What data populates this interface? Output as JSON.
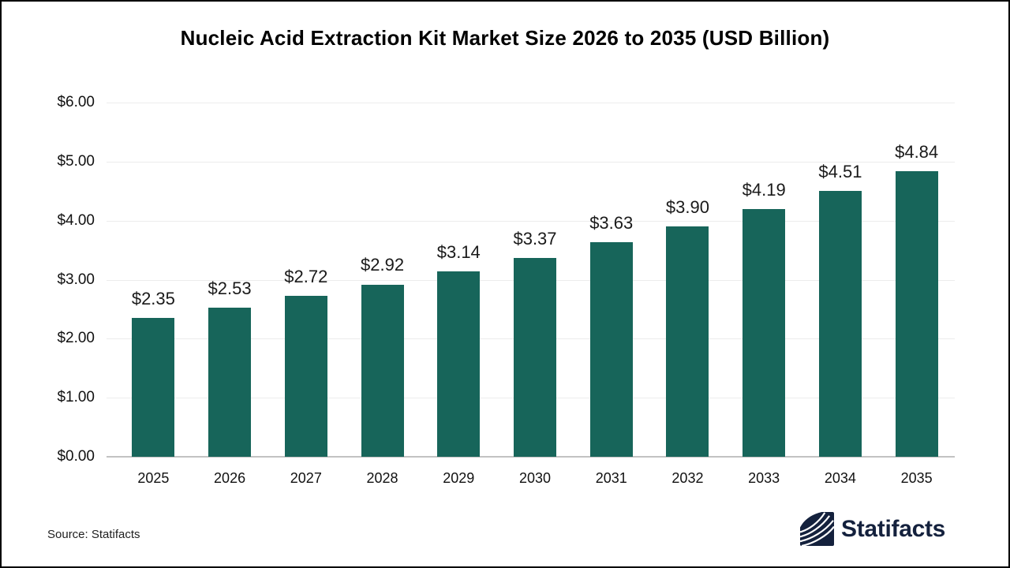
{
  "page": {
    "source_text": "Source: Statifacts",
    "brand_name": "Statifacts"
  },
  "colors": {
    "bar": "#17655a",
    "gridline": "#ececec",
    "axis_line": "#c2c2c2",
    "title_text": "#000000",
    "label_text": "#1a1a1a",
    "brand_navy": "#14213d"
  },
  "chart_data": {
    "type": "bar",
    "title": "Nucleic Acid Extraction Kit Market Size 2026 to 2035 (USD Billion)",
    "unit": "USD Billion",
    "categories": [
      "2025",
      "2026",
      "2027",
      "2028",
      "2029",
      "2030",
      "2031",
      "2032",
      "2033",
      "2034",
      "2035"
    ],
    "values": [
      2.35,
      2.53,
      2.72,
      2.92,
      3.14,
      3.37,
      3.63,
      3.9,
      4.19,
      4.51,
      4.84
    ],
    "value_labels": [
      "$2.35",
      "$2.53",
      "$2.72",
      "$2.92",
      "$3.14",
      "$3.37",
      "$3.63",
      "$3.90",
      "$4.19",
      "$4.51",
      "$4.84"
    ],
    "xlabel": "",
    "ylabel": "",
    "ylim": [
      0,
      6
    ],
    "yticks": [
      0,
      1,
      2,
      3,
      4,
      5,
      6
    ],
    "ytick_labels": [
      "$0.00",
      "$1.00",
      "$2.00",
      "$3.00",
      "$4.00",
      "$5.00",
      "$6.00"
    ],
    "grid": true,
    "legend": false
  }
}
